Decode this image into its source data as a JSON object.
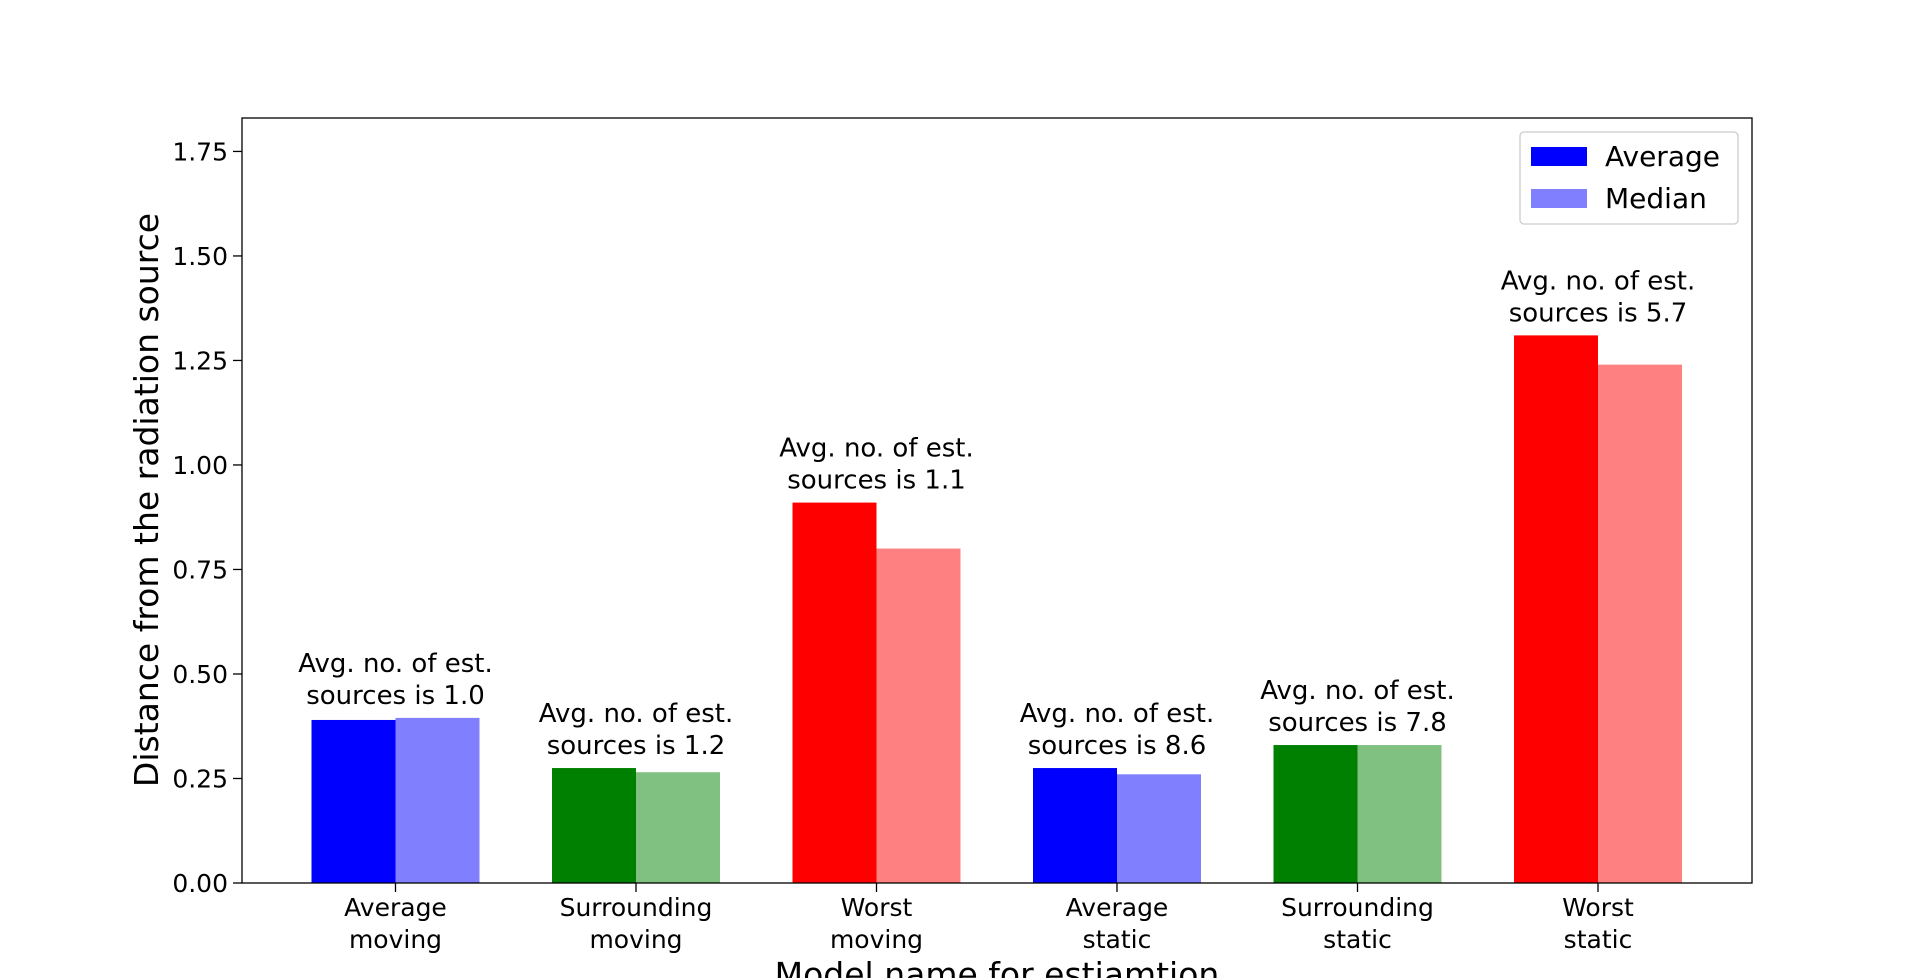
{
  "chart_data": {
    "type": "bar",
    "title": "",
    "xlabel": "Model name for estiamtion",
    "ylabel": "Distance from the radiation source",
    "ylim": [
      0,
      1.83
    ],
    "yticks": [
      "0.00",
      "0.25",
      "0.50",
      "0.75",
      "1.00",
      "1.25",
      "1.50",
      "1.75"
    ],
    "ytick_values": [
      0,
      0.25,
      0.5,
      0.75,
      1.0,
      1.25,
      1.5,
      1.75
    ],
    "grid": false,
    "legend_position": "top-right",
    "categories": [
      [
        "Average",
        "moving"
      ],
      [
        "Surrounding",
        "moving"
      ],
      [
        "Worst",
        "moving"
      ],
      [
        "Average",
        "static"
      ],
      [
        "Surrounding",
        "static"
      ],
      [
        "Worst",
        "static"
      ]
    ],
    "series": [
      {
        "name": "Average",
        "values": [
          0.39,
          0.275,
          0.91,
          0.275,
          0.33,
          1.31
        ]
      },
      {
        "name": "Median",
        "values": [
          0.395,
          0.265,
          0.8,
          0.26,
          0.33,
          1.24
        ]
      }
    ],
    "bar_colors": [
      "#0000ff",
      "#008000",
      "#ff0000",
      "#0000ff",
      "#008000",
      "#ff0000"
    ],
    "median_colors": [
      "#8080ff",
      "#80c080",
      "#ff8080",
      "#8080ff",
      "#80c080",
      "#ff8080"
    ],
    "legend_colors": [
      "#0000ff",
      "#8080ff"
    ],
    "annotations": [
      [
        "Avg. no. of est.",
        "sources is 1.0"
      ],
      [
        "Avg. no. of est.",
        "sources is 1.2"
      ],
      [
        "Avg. no. of est.",
        "sources is 1.1"
      ],
      [
        "Avg. no. of est.",
        "sources is 8.6"
      ],
      [
        "Avg. no. of est.",
        "sources is 7.8"
      ],
      [
        "Avg. no. of est.",
        "sources is 5.7"
      ]
    ]
  }
}
